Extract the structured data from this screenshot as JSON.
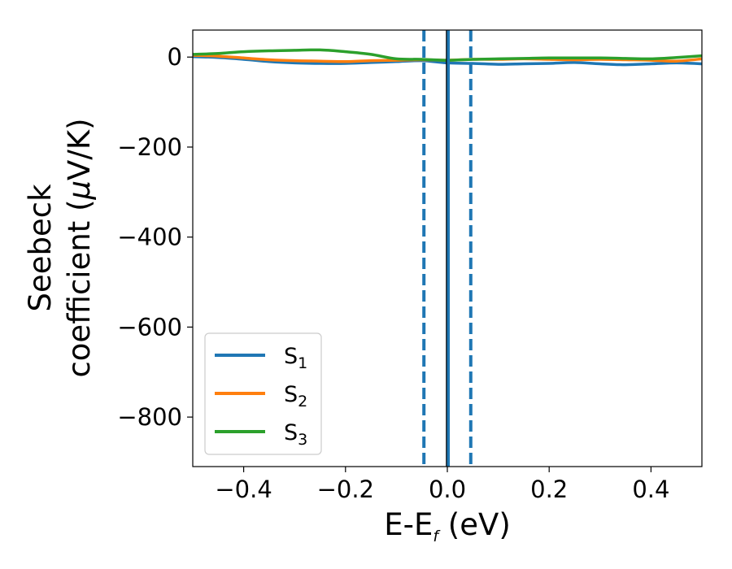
{
  "chart_data": {
    "type": "line",
    "xlabel": {
      "main": "E-E",
      "sub": "f",
      "unit": " (eV)"
    },
    "ylabel": {
      "line1": "Seebeck",
      "line2": "coefficient  (",
      "mu": "μ",
      "unit": "V/K)"
    },
    "xlim": [
      -0.5,
      0.5
    ],
    "ylim": [
      -910,
      60
    ],
    "xticks": [
      -0.4,
      -0.2,
      0.0,
      0.2,
      0.4
    ],
    "xtick_labels": [
      "−0.4",
      "−0.2",
      "0.0",
      "0.2",
      "0.4"
    ],
    "yticks": [
      0,
      -200,
      -400,
      -600,
      -800
    ],
    "ytick_labels": [
      "0",
      "−200",
      "−400",
      "−600",
      "−800"
    ],
    "grid": false,
    "legend_position": "lower-left",
    "vlines": [
      {
        "x": -0.046,
        "style": "dashed",
        "color": "#1f77b4"
      },
      {
        "x": 0.046,
        "style": "dashed",
        "color": "#1f77b4"
      },
      {
        "x": 0.0,
        "style": "solid",
        "color": "#000000"
      },
      {
        "x": 0.002,
        "style": "solid",
        "color": "#1f77b4"
      }
    ],
    "x": [
      -0.5,
      -0.45,
      -0.4,
      -0.35,
      -0.3,
      -0.25,
      -0.2,
      -0.15,
      -0.1,
      -0.05,
      0.0,
      0.05,
      0.1,
      0.15,
      0.2,
      0.25,
      0.3,
      0.35,
      0.4,
      0.45,
      0.5
    ],
    "series": [
      {
        "name": "S",
        "sub": "1",
        "color": "#1f77b4",
        "values": [
          1,
          -1,
          -5,
          -10,
          -13,
          -14,
          -14,
          -12,
          -10,
          -8,
          -13,
          -14,
          -16,
          -15,
          -14,
          -12,
          -15,
          -17,
          -15,
          -13,
          -15
        ]
      },
      {
        "name": "S",
        "sub": "2",
        "color": "#ff7f0e",
        "values": [
          4,
          2,
          -2,
          -6,
          -8,
          -9,
          -10,
          -8,
          -7,
          -6,
          -7,
          -5,
          -5,
          -4,
          -5,
          -6,
          -5,
          -6,
          -7,
          -9,
          -4
        ]
      },
      {
        "name": "S",
        "sub": "3",
        "color": "#2ca02c",
        "values": [
          6,
          8,
          12,
          14,
          15,
          16,
          12,
          6,
          -4,
          -5,
          -7,
          -5,
          -4,
          -3,
          -2,
          -2,
          -2,
          -3,
          -4,
          -1,
          3
        ]
      }
    ]
  }
}
